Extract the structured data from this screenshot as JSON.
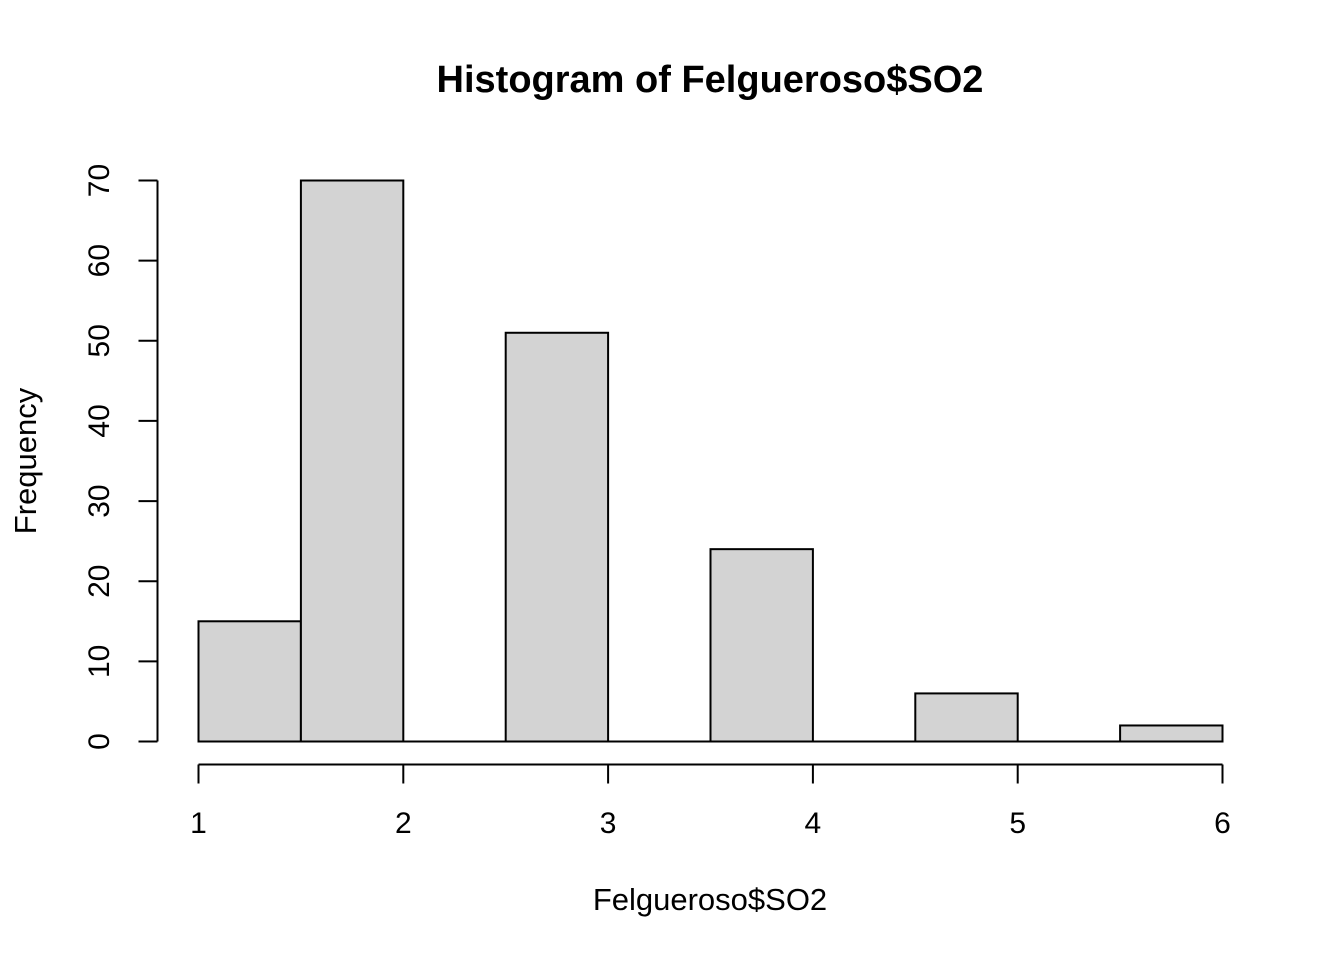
{
  "chart_data": {
    "type": "bar",
    "subtype": "histogram",
    "title": "Histogram of Felgueroso$SO2",
    "xlabel": "Felgueroso$SO2",
    "ylabel": "Frequency",
    "bins": [
      {
        "start": 1.0,
        "end": 1.5,
        "count": 15
      },
      {
        "start": 1.5,
        "end": 2.0,
        "count": 70
      },
      {
        "start": 2.0,
        "end": 2.5,
        "count": 0
      },
      {
        "start": 2.5,
        "end": 3.0,
        "count": 51
      },
      {
        "start": 3.0,
        "end": 3.5,
        "count": 0
      },
      {
        "start": 3.5,
        "end": 4.0,
        "count": 24
      },
      {
        "start": 4.0,
        "end": 4.5,
        "count": 0
      },
      {
        "start": 4.5,
        "end": 5.0,
        "count": 6
      },
      {
        "start": 5.0,
        "end": 5.5,
        "count": 0
      },
      {
        "start": 5.5,
        "end": 6.0,
        "count": 2
      }
    ],
    "xlim": [
      1,
      6
    ],
    "ylim": [
      0,
      70
    ],
    "xticks": [
      1,
      2,
      3,
      4,
      5,
      6
    ],
    "yticks": [
      0,
      10,
      20,
      30,
      40,
      50,
      60,
      70
    ],
    "grid": false,
    "legend": "none",
    "bar_fill": "#d3d3d3",
    "bar_stroke": "#000000"
  }
}
